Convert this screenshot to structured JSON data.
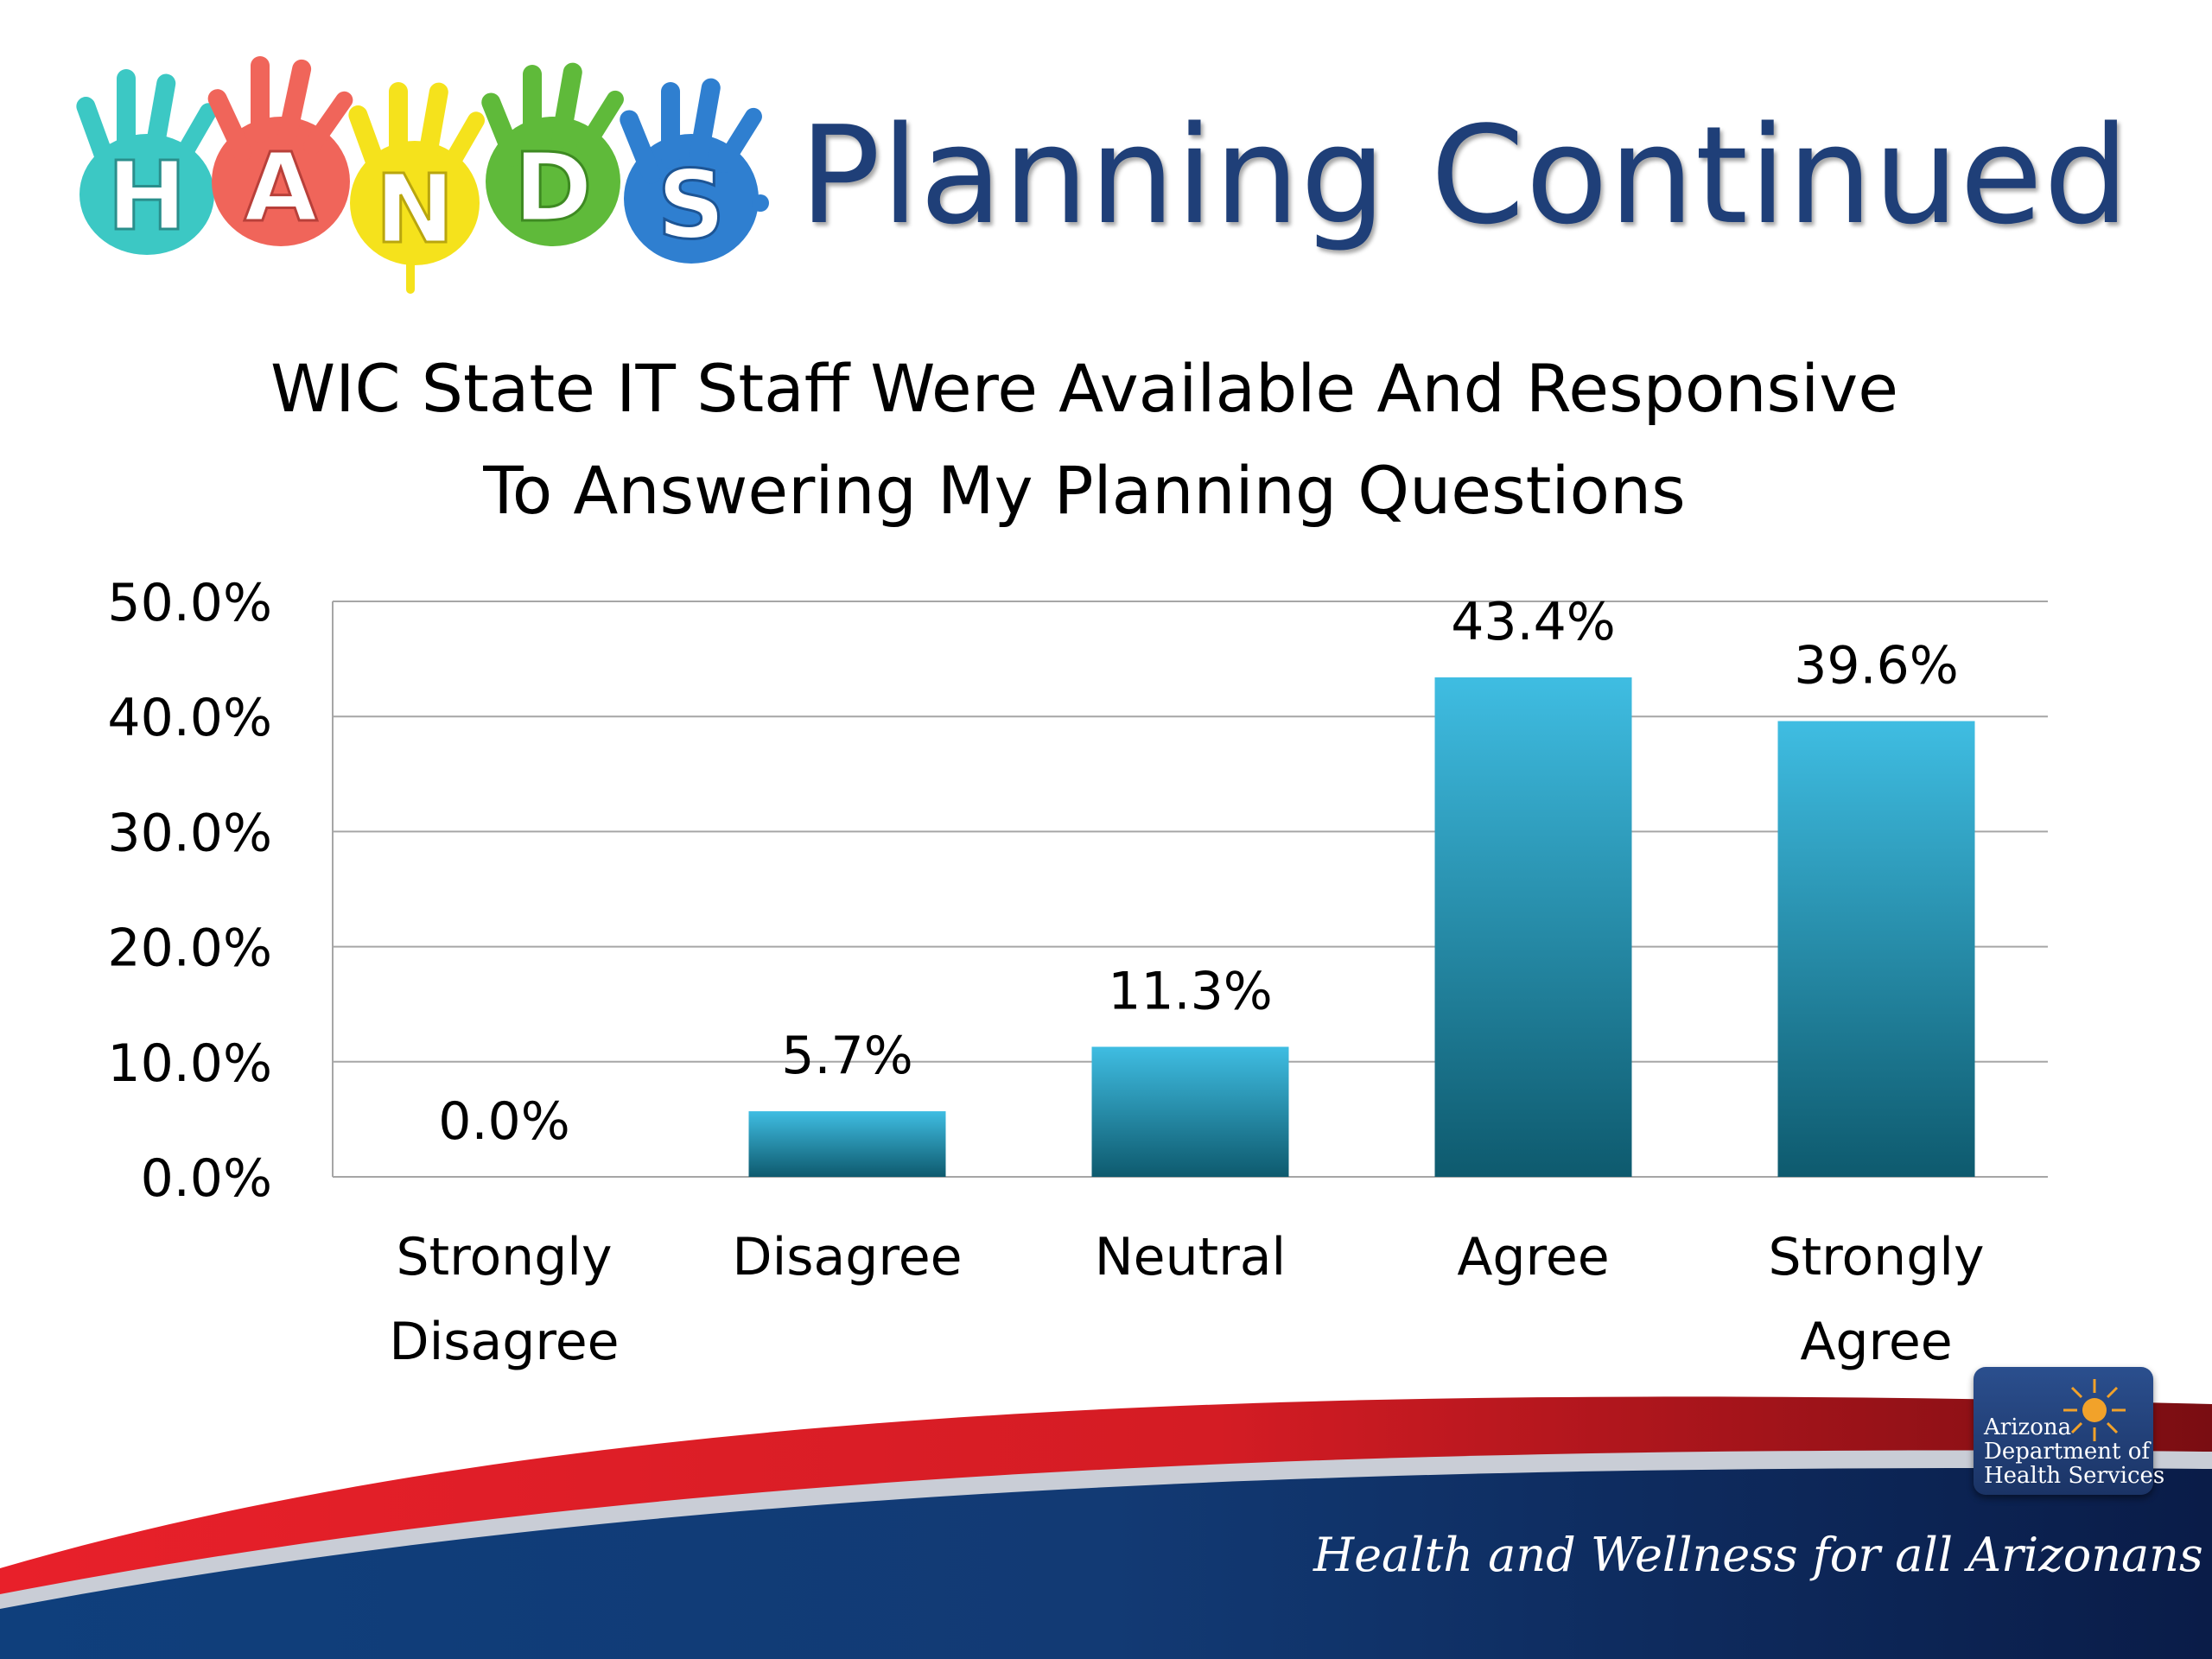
{
  "slide": {
    "logo_letters": [
      "H",
      "A",
      "N",
      "D",
      "S"
    ],
    "title": "Planning Continued",
    "footer_tagline": "Health and Wellness for all Arizonans",
    "agency_logo_lines": [
      "Arizona",
      "Department of",
      "Health Services"
    ]
  },
  "chart_data": {
    "type": "bar",
    "title_lines": [
      "WIC State IT Staff Were Available And Responsive",
      "To Answering My Planning Questions"
    ],
    "categories": [
      [
        "Strongly",
        "Disagree"
      ],
      [
        "Disagree"
      ],
      [
        "Neutral"
      ],
      [
        "Agree"
      ],
      [
        "Strongly",
        "Agree"
      ]
    ],
    "values": [
      0.0,
      5.7,
      11.3,
      43.4,
      39.6
    ],
    "data_labels": [
      "0.0%",
      "5.7%",
      "11.3%",
      "43.4%",
      "39.6%"
    ],
    "y_ticks": [
      0,
      10,
      20,
      30,
      40,
      50
    ],
    "y_tick_labels": [
      "0.0%",
      "10.0%",
      "20.0%",
      "30.0%",
      "40.0%",
      "50.0%"
    ],
    "ylim": [
      0,
      50
    ],
    "grid": true,
    "legend": "none",
    "bar_color_top": "#3fbde2",
    "bar_color_bottom": "#0e5a6e"
  }
}
